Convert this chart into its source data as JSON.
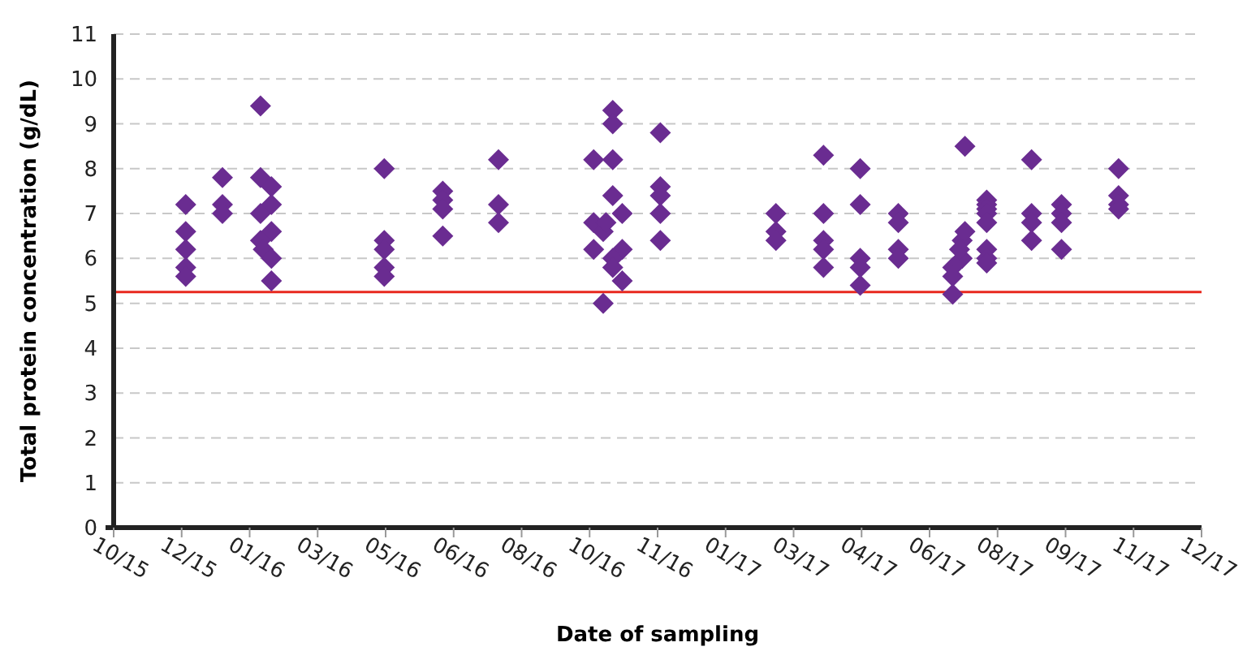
{
  "chart_data": {
    "type": "scatter",
    "xlabel": "Date of sampling",
    "ylabel": "Total protein concentration (g/dL)",
    "x": [
      "2015-12-14",
      "2015-12-14",
      "2015-12-14",
      "2015-12-14",
      "2015-12-14",
      "2016-01-10",
      "2016-01-10",
      "2016-01-10",
      "2016-02-07",
      "2016-02-07",
      "2016-02-15",
      "2016-02-15",
      "2016-02-07",
      "2016-02-15",
      "2016-02-07",
      "2016-02-09",
      "2016-02-15",
      "2016-02-15",
      "2016-05-08",
      "2016-05-08",
      "2016-05-08",
      "2016-05-08",
      "2016-05-08",
      "2016-06-20",
      "2016-06-20",
      "2016-06-20",
      "2016-06-20",
      "2016-07-31",
      "2016-07-31",
      "2016-07-31",
      "2016-10-09",
      "2016-10-23",
      "2016-10-23",
      "2016-10-23",
      "2016-10-23",
      "2016-10-30",
      "2016-10-09",
      "2016-10-16",
      "2016-10-09",
      "2016-10-30",
      "2016-10-23",
      "2016-10-23",
      "2016-10-30",
      "2016-10-16",
      "2016-10-18",
      "2016-11-27",
      "2016-11-27",
      "2016-11-27",
      "2016-11-27",
      "2016-11-27",
      "2017-02-20",
      "2017-02-20",
      "2017-02-20",
      "2017-03-27",
      "2017-03-27",
      "2017-03-27",
      "2017-03-27",
      "2017-03-27",
      "2017-04-23",
      "2017-04-23",
      "2017-04-23",
      "2017-04-23",
      "2017-04-23",
      "2017-05-21",
      "2017-05-21",
      "2017-05-21",
      "2017-05-21",
      "2017-07-09",
      "2017-07-07",
      "2017-07-09",
      "2017-07-07",
      "2017-06-30",
      "2017-06-30",
      "2017-06-30",
      "2017-07-05",
      "2017-07-25",
      "2017-07-25",
      "2017-07-25",
      "2017-07-25",
      "2017-07-25",
      "2017-07-25",
      "2017-07-25",
      "2017-07-25",
      "2017-08-27",
      "2017-08-27",
      "2017-08-27",
      "2017-08-27",
      "2017-09-18",
      "2017-09-18",
      "2017-09-18",
      "2017-09-18",
      "2017-10-30",
      "2017-10-30",
      "2017-10-30",
      "2017-10-30"
    ],
    "values": [
      7.2,
      6.6,
      6.2,
      5.8,
      5.6,
      7.8,
      7.2,
      7.0,
      9.4,
      7.8,
      7.6,
      7.2,
      7.0,
      6.6,
      6.4,
      6.2,
      6.0,
      5.5,
      8.0,
      6.4,
      6.2,
      5.8,
      5.6,
      7.5,
      7.3,
      7.1,
      6.5,
      8.2,
      7.2,
      6.8,
      8.2,
      9.3,
      9.0,
      8.2,
      7.4,
      7.0,
      6.8,
      6.6,
      6.2,
      6.2,
      6.0,
      5.8,
      5.5,
      5.0,
      6.8,
      8.8,
      7.6,
      7.4,
      7.0,
      6.4,
      7.0,
      6.6,
      6.4,
      8.3,
      7.0,
      6.4,
      6.2,
      5.8,
      8.0,
      7.2,
      6.0,
      5.8,
      5.4,
      7.0,
      6.8,
      6.2,
      6.0,
      8.5,
      6.4,
      6.6,
      6.0,
      5.8,
      5.6,
      5.2,
      6.2,
      7.3,
      7.2,
      7.1,
      7.0,
      6.8,
      6.2,
      6.0,
      5.9,
      8.2,
      7.0,
      6.8,
      6.4,
      7.2,
      7.0,
      6.8,
      6.2,
      8.0,
      7.4,
      7.2,
      7.1
    ],
    "color": "#6a2c91",
    "marker": "diamond",
    "xlim": [
      "2015-10-22",
      "2017-12-30"
    ],
    "xticks": [
      {
        "value": "2015-10-22",
        "label": "10/15"
      },
      {
        "value": "2015-12-11",
        "label": "12/15"
      },
      {
        "value": "2016-01-30",
        "label": "01/16"
      },
      {
        "value": "2016-03-20",
        "label": "03/16"
      },
      {
        "value": "2016-05-09",
        "label": "05/16"
      },
      {
        "value": "2016-06-28",
        "label": "06/16"
      },
      {
        "value": "2016-08-17",
        "label": "08/16"
      },
      {
        "value": "2016-10-06",
        "label": "10/16"
      },
      {
        "value": "2016-11-25",
        "label": "11/16"
      },
      {
        "value": "2017-01-14",
        "label": "01/17"
      },
      {
        "value": "2017-03-05",
        "label": "03/17"
      },
      {
        "value": "2017-04-24",
        "label": "04/17"
      },
      {
        "value": "2017-06-13",
        "label": "06/17"
      },
      {
        "value": "2017-08-02",
        "label": "08/17"
      },
      {
        "value": "2017-09-21",
        "label": "09/17"
      },
      {
        "value": "2017-11-10",
        "label": "11/17"
      },
      {
        "value": "2017-12-30",
        "label": "12/17"
      }
    ],
    "ylim": [
      0,
      11
    ],
    "yticks": [
      0,
      1,
      2,
      3,
      4,
      5,
      6,
      7,
      8,
      9,
      10,
      11
    ],
    "grid": "y",
    "ref_lines": [
      {
        "axis": "y",
        "value": 5.25,
        "color": "#e8281e"
      }
    ]
  }
}
